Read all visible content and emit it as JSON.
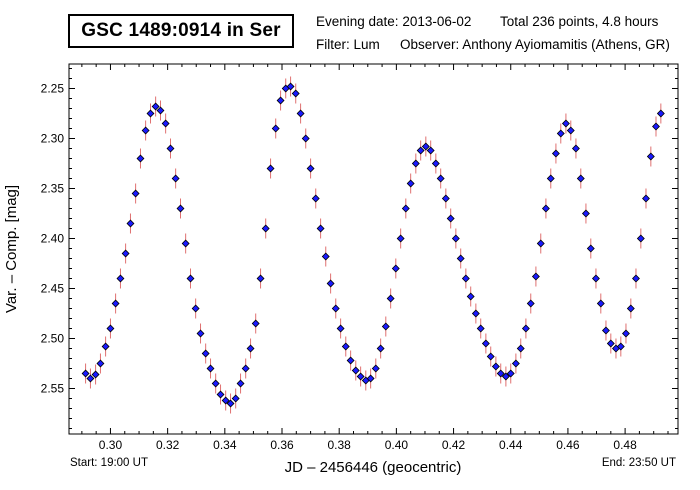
{
  "header": {
    "title": "GSC 1489:0914 in Ser",
    "evening_date": "Evening date: 2013-06-02",
    "total": "Total 236 points, 4.8 hours",
    "filter": "Filter: Lum",
    "observer": "Observer: Anthony Ayiomamitis (Athens, GR)"
  },
  "chart_data": {
    "type": "scatter",
    "title": "GSC 1489:0914 in Ser",
    "xlabel": "JD – 2456446  (geocentric)",
    "ylabel": "Var. – Comp. [mag]",
    "xlim": [
      0.2855,
      0.4985
    ],
    "ylim": [
      2.2255,
      2.5955
    ],
    "y_inverted": true,
    "x_ticks": [
      0.3,
      0.32,
      0.34,
      0.36,
      0.38,
      0.4,
      0.42,
      0.44,
      0.46,
      0.48
    ],
    "x_tick_labels": [
      "0.30",
      "0.32",
      "0.34",
      "0.36",
      "0.38",
      "0.40",
      "0.42",
      "0.44",
      "0.46",
      "0.48"
    ],
    "y_ticks": [
      2.25,
      2.3,
      2.35,
      2.4,
      2.45,
      2.5,
      2.55
    ],
    "y_tick_labels": [
      "2.25",
      "2.30",
      "2.35",
      "2.40",
      "2.45",
      "2.50",
      "2.55"
    ],
    "start_label": "Start: 19:00 UT",
    "end_label": "End: 23:50 UT",
    "error_bar_mag": 0.01,
    "series": [
      {
        "name": "Lum",
        "marker_color": "#1a1aff",
        "error_color": "#e07070",
        "x": [
          0.2913,
          0.293,
          0.2948,
          0.2965,
          0.2983,
          0.3,
          0.3018,
          0.3035,
          0.3053,
          0.307,
          0.3088,
          0.3105,
          0.3123,
          0.314,
          0.3158,
          0.3175,
          0.3193,
          0.321,
          0.3228,
          0.3245,
          0.3263,
          0.328,
          0.3298,
          0.3315,
          0.3333,
          0.335,
          0.3368,
          0.3385,
          0.3403,
          0.342,
          0.3438,
          0.3455,
          0.3473,
          0.349,
          0.3508,
          0.3525,
          0.3543,
          0.356,
          0.3578,
          0.3595,
          0.3613,
          0.363,
          0.3648,
          0.3665,
          0.3683,
          0.37,
          0.3718,
          0.3735,
          0.3753,
          0.377,
          0.3788,
          0.3805,
          0.3823,
          0.384,
          0.3858,
          0.3875,
          0.3893,
          0.391,
          0.3928,
          0.3945,
          0.3963,
          0.398,
          0.3998,
          0.4015,
          0.4033,
          0.405,
          0.4068,
          0.4085,
          0.4103,
          0.412,
          0.4138,
          0.4155,
          0.4173,
          0.419,
          0.4208,
          0.4225,
          0.4243,
          0.426,
          0.4278,
          0.4295,
          0.4313,
          0.433,
          0.4348,
          0.4365,
          0.4383,
          0.44,
          0.4418,
          0.4435,
          0.4453,
          0.447,
          0.4488,
          0.4505,
          0.4523,
          0.454,
          0.4558,
          0.4575,
          0.4593,
          0.461,
          0.4628,
          0.4645,
          0.4663,
          0.468,
          0.4698,
          0.4715,
          0.4733,
          0.475,
          0.4768,
          0.4785,
          0.4803,
          0.482,
          0.4838,
          0.4855,
          0.4873,
          0.489,
          0.4908,
          0.4925
        ],
        "y": [
          2.535,
          2.54,
          2.536,
          2.525,
          2.508,
          2.49,
          2.465,
          2.44,
          2.415,
          2.385,
          2.355,
          2.32,
          2.292,
          2.275,
          2.268,
          2.272,
          2.285,
          2.31,
          2.34,
          2.37,
          2.405,
          2.44,
          2.47,
          2.495,
          2.515,
          2.53,
          2.545,
          2.556,
          2.562,
          2.565,
          2.56,
          2.545,
          2.53,
          2.51,
          2.485,
          2.44,
          2.39,
          2.33,
          2.29,
          2.262,
          2.25,
          2.248,
          2.255,
          2.275,
          2.3,
          2.33,
          2.36,
          2.39,
          2.418,
          2.445,
          2.47,
          2.49,
          2.508,
          2.522,
          2.532,
          2.538,
          2.542,
          2.54,
          2.53,
          2.51,
          2.488,
          2.46,
          2.43,
          2.4,
          2.37,
          2.345,
          2.325,
          2.312,
          2.308,
          2.312,
          2.325,
          2.34,
          2.36,
          2.38,
          2.4,
          2.42,
          2.44,
          2.458,
          2.475,
          2.49,
          2.505,
          2.518,
          2.528,
          2.535,
          2.538,
          2.535,
          2.525,
          2.51,
          2.49,
          2.465,
          2.438,
          2.405,
          2.37,
          2.34,
          2.315,
          2.295,
          2.285,
          2.292,
          2.31,
          2.34,
          2.375,
          2.41,
          2.44,
          2.465,
          2.492,
          2.505,
          2.51,
          2.508,
          2.495,
          2.47,
          2.44,
          2.4,
          2.36,
          2.318,
          2.288,
          2.275
        ]
      }
    ]
  }
}
